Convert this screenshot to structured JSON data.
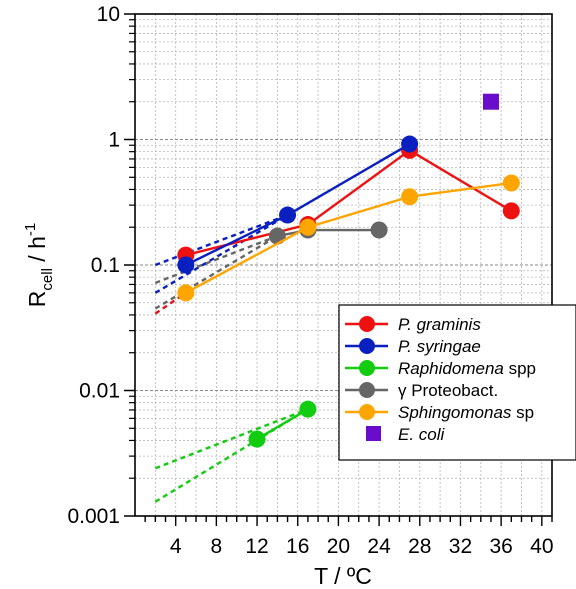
{
  "chart_data": {
    "type": "line",
    "x_axis": {
      "label": "T / ºC",
      "range": [
        0,
        41
      ],
      "major_ticks": [
        4,
        8,
        12,
        16,
        20,
        24,
        28,
        32,
        36,
        40
      ],
      "tick_labels": [
        "4",
        "8",
        "12",
        "16",
        "20",
        "24",
        "28",
        "32",
        "36",
        "40"
      ]
    },
    "y_axis": {
      "label_main": "R",
      "label_sub": "cell",
      "label_unit": " / h",
      "label_sup": "-1",
      "scale": "log",
      "range": [
        0.001,
        10
      ],
      "major_ticks": [
        0.001,
        0.01,
        0.1,
        1,
        10
      ],
      "tick_labels": [
        "0.001",
        "0.01",
        "0.1",
        "1",
        "10"
      ]
    },
    "grid": true,
    "legend_position": "right",
    "series": [
      {
        "name_plain": "",
        "name_italic": "P. graminis",
        "color": "#ee1111",
        "marker": "circle",
        "points": [
          [
            5,
            0.12
          ],
          [
            17,
            0.21
          ],
          [
            27,
            0.82
          ],
          [
            37,
            0.27
          ]
        ],
        "extrapolation": [
          [
            2,
            0.041
          ],
          [
            5,
            0.06
          ]
        ]
      },
      {
        "name_plain": "",
        "name_italic": "P. syringae",
        "color": "#0a1fbf",
        "marker": "circle",
        "points": [
          [
            5,
            0.1
          ],
          [
            15,
            0.25
          ],
          [
            27,
            0.92
          ]
        ],
        "extrapolation": [
          [
            2,
            0.1
          ],
          [
            15,
            0.25
          ],
          [
            2,
            0.06
          ],
          [
            15,
            0.25
          ]
        ]
      },
      {
        "name_plain": "",
        "name_italic": "Raphidomena",
        "name_suffix": " spp",
        "color": "#11cc11",
        "marker": "circle",
        "points": [
          [
            12,
            0.0041
          ],
          [
            17,
            0.0071
          ]
        ],
        "extrapolation": [
          [
            2,
            0.0024
          ],
          [
            17,
            0.0071
          ],
          [
            2,
            0.0013
          ],
          [
            17,
            0.0071
          ]
        ]
      },
      {
        "name_plain": "γ Proteobact.",
        "name_italic": "",
        "color": "#666666",
        "marker": "circle",
        "points": [
          [
            14,
            0.17
          ],
          [
            17,
            0.19
          ],
          [
            24,
            0.19
          ]
        ],
        "extrapolation": [
          [
            2,
            0.072
          ],
          [
            14,
            0.17
          ],
          [
            2,
            0.045
          ],
          [
            14,
            0.17
          ]
        ]
      },
      {
        "name_plain": "",
        "name_italic": "Sphingomonas",
        "name_suffix": " sp",
        "color": "#ffa500",
        "marker": "circle",
        "points": [
          [
            5,
            0.06
          ],
          [
            17,
            0.2
          ],
          [
            27,
            0.35
          ],
          [
            37,
            0.45
          ]
        ],
        "extrapolation": []
      },
      {
        "name_plain": "",
        "name_italic": "E. coli",
        "color": "#6a0ccc",
        "marker": "square",
        "points": [
          [
            35,
            2.0
          ]
        ],
        "extrapolation": []
      }
    ]
  }
}
